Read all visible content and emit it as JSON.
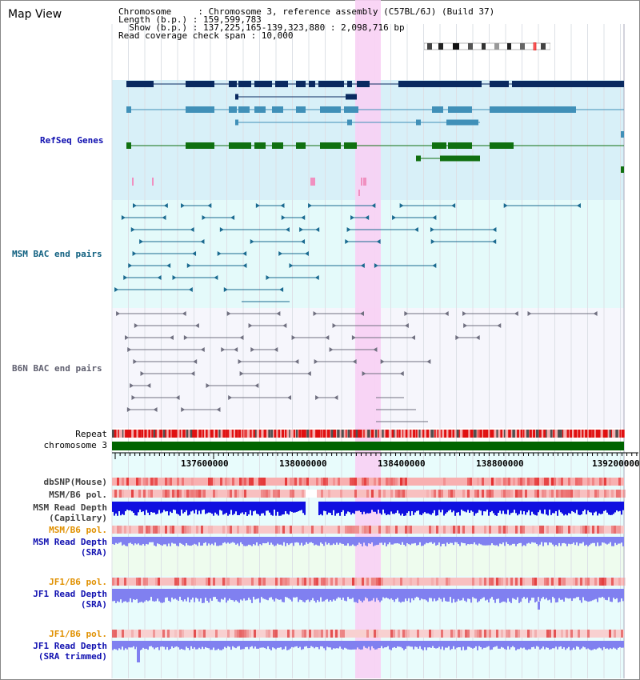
{
  "header": {
    "title": "Map View",
    "info_lines": [
      "Chromosome     : Chromosome 3, reference assembly (C57BL/6J) (Build 37)",
      "Length (b.p.) : 159,599,783",
      "  Show (b.p.) : 137,225,165-139,323,880 : 2,098,716 bp",
      "Read coverage check span : 10,000"
    ]
  },
  "tracks": {
    "refseq": "RefSeq Genes",
    "msm_bac": "MSM BAC end pairs",
    "b6n_bac": "B6N BAC end pairs",
    "repeat": "Repeat",
    "chromosome": "chromosome 3",
    "dbsnp": "dbSNP(Mouse)",
    "msm_b6_pol_1": "MSM/B6 pol.",
    "msm_read_depth_cap_1": "MSM Read Depth",
    "msm_read_depth_cap_2": "(Capillary)",
    "msm_b6_pol_2": "MSM/B6 pol.",
    "msm_read_depth_sra_1": "MSM Read Depth",
    "msm_read_depth_sra_2": "(SRA)",
    "jf1_b6_pol_1": "JF1/B6 pol.",
    "jf1_read_depth_sra_1": "JF1 Read Depth",
    "jf1_read_depth_sra_2": "(SRA)",
    "jf1_b6_pol_2": "JF1/B6 pol.",
    "jf1_read_depth_trim_1": "JF1 Read Depth",
    "jf1_read_depth_trim_2": "(SRA trimmed)"
  },
  "axis": {
    "ticks": [
      "137600000",
      "138000000",
      "138400000",
      "138800000",
      "139200000"
    ]
  },
  "colors": {
    "highlight": "#f8d0f4",
    "refseq_bg": "#d8f0f8",
    "gene_navy": "#0a2a60",
    "gene_teal": "#4090b8",
    "gene_green": "#107010",
    "msm_line": "#1a6a90",
    "b6n_line": "#707080",
    "repeat_red": "#e01010",
    "chromosome_green": "#006400",
    "depth_capillary": "#1010e0",
    "depth_sra": "#8080f0"
  }
}
